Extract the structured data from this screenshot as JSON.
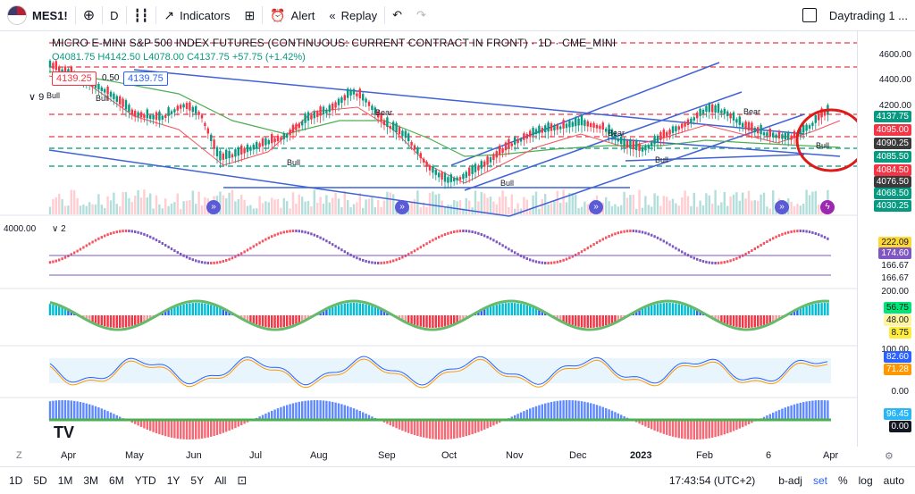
{
  "toolbar": {
    "symbol": "MES1!",
    "interval": "D",
    "indicators_label": "Indicators",
    "alert_label": "Alert",
    "replay_label": "Replay",
    "layout_name": "Daytrading 1 ..."
  },
  "legend": {
    "title": "MICRO E-MINI S&P 500 INDEX FUTURES (CONTINUOUS: CURRENT CONTRACT IN FRONT) · 1D · CME_MINI",
    "ohlc": "O4081.75  H4142.50  L4078.00  C4137.75  +57.75 (+1.42%)",
    "bid": "4139.25",
    "ask": "4139.75",
    "spread": "0.50",
    "indicator_count": "9",
    "collapsed_count": "2",
    "level_4000": "4000.00"
  },
  "price_labels": [
    {
      "text": "4137.75",
      "color": "#089981"
    },
    {
      "text": "4095.00",
      "color": "#f23645"
    },
    {
      "text": "4090.25",
      "color": "#3a3a3a"
    },
    {
      "text": "4085.50",
      "color": "#089981"
    },
    {
      "text": "4084.50",
      "color": "#f23645"
    },
    {
      "text": "4076.50",
      "color": "#3a3a3a"
    },
    {
      "text": "4068.50",
      "color": "#089981"
    },
    {
      "text": "4030.25",
      "color": "#089981"
    }
  ],
  "scale_ticks": [
    "4600.00",
    "4400.00",
    "4200.00"
  ],
  "pane_values": {
    "p1": [
      "222.09",
      "174.60",
      "166.67",
      "166.67"
    ],
    "p2": [
      "200.00",
      "56.75",
      "48.00",
      "8.75"
    ],
    "p3": [
      "100.00",
      "82.60",
      "71.28",
      "0.00"
    ],
    "p4": [
      "96.45",
      "0.00"
    ]
  },
  "timescale": [
    "Apr",
    "May",
    "Jun",
    "Jul",
    "Aug",
    "Sep",
    "Oct",
    "Nov",
    "Dec",
    "2023",
    "Feb",
    "6",
    "Apr"
  ],
  "bottom": {
    "timeframes": [
      "1D",
      "5D",
      "1M",
      "3M",
      "6M",
      "YTD",
      "1Y",
      "5Y",
      "All"
    ],
    "time": "17:43:54 (UTC+2)",
    "badj": "b-adj",
    "set": "set",
    "pct": "%",
    "log": "log",
    "auto": "auto"
  }
}
